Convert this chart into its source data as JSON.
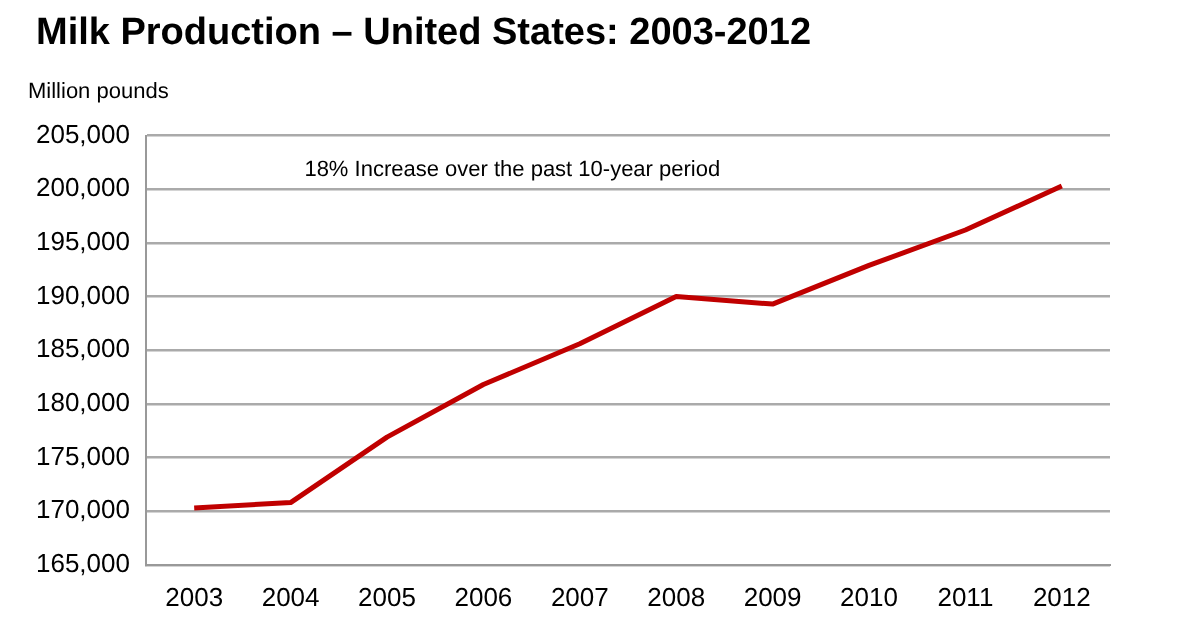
{
  "chart_data": {
    "type": "line",
    "title": "Milk Production – United States: 2003-2012",
    "ylabel": "Million pounds",
    "annotations": [
      "18% Increase over the past 10-year period"
    ],
    "categories": [
      "2003",
      "2004",
      "2005",
      "2006",
      "2007",
      "2008",
      "2009",
      "2010",
      "2011",
      "2012"
    ],
    "series": [
      {
        "color": "#c00000",
        "values": [
          170300,
          170800,
          176900,
          181800,
          185600,
          190000,
          189300,
          192900,
          196200,
          200300
        ]
      }
    ],
    "ylim": [
      165000,
      205000
    ],
    "yticks": [
      {
        "value": 165000,
        "label": "165,000"
      },
      {
        "value": 170000,
        "label": "170,000"
      },
      {
        "value": 175000,
        "label": "175,000"
      },
      {
        "value": 180000,
        "label": "180,000"
      },
      {
        "value": 185000,
        "label": "185,000"
      },
      {
        "value": 190000,
        "label": "190,000"
      },
      {
        "value": 195000,
        "label": "195,000"
      },
      {
        "value": 200000,
        "label": "200,000"
      },
      {
        "value": 205000,
        "label": "205,000"
      }
    ],
    "grid": "y",
    "legend": false,
    "marker": "none",
    "line_style": "solid"
  }
}
